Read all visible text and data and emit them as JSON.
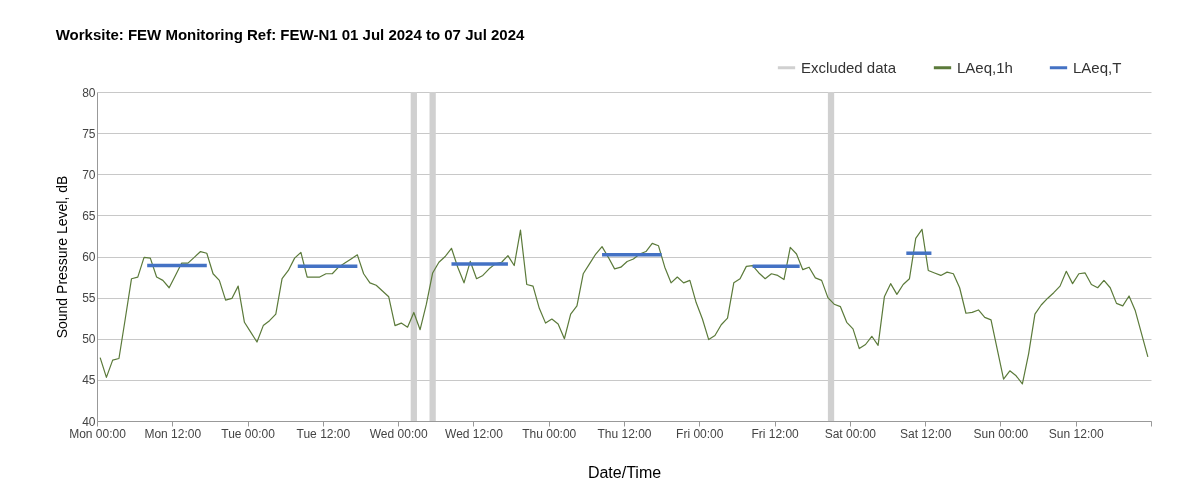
{
  "chart_data": {
    "type": "line",
    "title": "Worksite: FEW   Monitoring Ref: FEW-N1    01 Jul 2024 to 07 Jul 2024",
    "xlabel": "Date/Time",
    "ylabel": "Sound Pressure Level, dB",
    "xlim": [
      "2024-07-01T00:00",
      "2024-07-08T00:00"
    ],
    "ylim": [
      40,
      80
    ],
    "xticks": [
      {
        "value": "2024-07-01T00:00",
        "label": "Mon 00:00"
      },
      {
        "value": "2024-07-01T12:00",
        "label": "Mon 12:00"
      },
      {
        "value": "2024-07-02T00:00",
        "label": "Tue 00:00"
      },
      {
        "value": "2024-07-02T12:00",
        "label": "Tue 12:00"
      },
      {
        "value": "2024-07-03T00:00",
        "label": "Wed 00:00"
      },
      {
        "value": "2024-07-03T12:00",
        "label": "Wed 12:00"
      },
      {
        "value": "2024-07-04T00:00",
        "label": "Thu 00:00"
      },
      {
        "value": "2024-07-04T12:00",
        "label": "Thu 12:00"
      },
      {
        "value": "2024-07-05T00:00",
        "label": "Fri 00:00"
      },
      {
        "value": "2024-07-05T12:00",
        "label": "Fri 12:00"
      },
      {
        "value": "2024-07-06T00:00",
        "label": "Sat 00:00"
      },
      {
        "value": "2024-07-06T12:00",
        "label": "Sat 12:00"
      },
      {
        "value": "2024-07-07T00:00",
        "label": "Sun 00:00"
      },
      {
        "value": "2024-07-07T12:00",
        "label": "Sun 12:00"
      },
      {
        "value": "2024-07-08T00:00",
        "label": null
      }
    ],
    "yticks": [
      40,
      45,
      50,
      55,
      60,
      65,
      70,
      75,
      80
    ],
    "grid": "y",
    "legend": "top right",
    "bands": [
      {
        "axis": "x",
        "from": "2024-07-03T02:00",
        "to": "2024-07-03T03:00",
        "label": "Excluded data",
        "color": "#d0d0d0"
      },
      {
        "axis": "x",
        "from": "2024-07-03T05:00",
        "to": "2024-07-03T06:00",
        "color": "#d0d0d0"
      },
      {
        "axis": "x",
        "from": "2024-07-05T20:30",
        "to": "2024-07-05T21:30",
        "color": "#d0d0d0"
      }
    ],
    "series": [
      {
        "name": "LAeq,1h",
        "color": "#5b7a3a",
        "x": [
          "2024-07-01T00:30",
          "2024-07-01T01:30",
          "2024-07-01T02:30",
          "2024-07-01T03:30",
          "2024-07-01T04:30",
          "2024-07-01T05:30",
          "2024-07-01T06:30",
          "2024-07-01T07:30",
          "2024-07-01T08:30",
          "2024-07-01T09:30",
          "2024-07-01T10:30",
          "2024-07-01T11:30",
          "2024-07-01T12:30",
          "2024-07-01T13:30",
          "2024-07-01T14:30",
          "2024-07-01T15:30",
          "2024-07-01T16:30",
          "2024-07-01T17:30",
          "2024-07-01T18:30",
          "2024-07-01T19:30",
          "2024-07-01T20:30",
          "2024-07-01T21:30",
          "2024-07-01T22:30",
          "2024-07-01T23:30",
          "2024-07-02T00:30",
          "2024-07-02T01:30",
          "2024-07-02T02:30",
          "2024-07-02T03:30",
          "2024-07-02T04:30",
          "2024-07-02T05:30",
          "2024-07-02T06:30",
          "2024-07-02T07:30",
          "2024-07-02T08:30",
          "2024-07-02T09:30",
          "2024-07-02T10:30",
          "2024-07-02T11:30",
          "2024-07-02T12:30",
          "2024-07-02T13:30",
          "2024-07-02T14:30",
          "2024-07-02T15:30",
          "2024-07-02T16:30",
          "2024-07-02T17:30",
          "2024-07-02T18:30",
          "2024-07-02T19:30",
          "2024-07-02T20:30",
          "2024-07-02T21:30",
          "2024-07-02T22:30",
          "2024-07-02T23:30",
          "2024-07-03T00:30",
          "2024-07-03T01:30",
          "2024-07-03T02:30",
          "2024-07-03T03:30",
          "2024-07-03T04:30",
          "2024-07-03T05:30",
          "2024-07-03T06:30",
          "2024-07-03T07:30",
          "2024-07-03T08:30",
          "2024-07-03T09:30",
          "2024-07-03T10:30",
          "2024-07-03T11:30",
          "2024-07-03T12:30",
          "2024-07-03T13:30",
          "2024-07-03T14:30",
          "2024-07-03T15:30",
          "2024-07-03T16:30",
          "2024-07-03T17:30",
          "2024-07-03T18:30",
          "2024-07-03T19:30",
          "2024-07-03T20:30",
          "2024-07-03T21:30",
          "2024-07-03T22:30",
          "2024-07-03T23:30",
          "2024-07-04T00:30",
          "2024-07-04T01:30",
          "2024-07-04T02:30",
          "2024-07-04T03:30",
          "2024-07-04T04:30",
          "2024-07-04T05:30",
          "2024-07-04T06:30",
          "2024-07-04T07:30",
          "2024-07-04T08:30",
          "2024-07-04T09:30",
          "2024-07-04T10:30",
          "2024-07-04T11:30",
          "2024-07-04T12:30",
          "2024-07-04T13:30",
          "2024-07-04T14:30",
          "2024-07-04T15:30",
          "2024-07-04T16:30",
          "2024-07-04T17:30",
          "2024-07-04T18:30",
          "2024-07-04T19:30",
          "2024-07-04T20:30",
          "2024-07-04T21:30",
          "2024-07-04T22:30",
          "2024-07-04T23:30",
          "2024-07-05T00:30",
          "2024-07-05T01:30",
          "2024-07-05T02:30",
          "2024-07-05T03:30",
          "2024-07-05T04:30",
          "2024-07-05T05:30",
          "2024-07-05T06:30",
          "2024-07-05T07:30",
          "2024-07-05T08:30",
          "2024-07-05T09:30",
          "2024-07-05T10:30",
          "2024-07-05T11:30",
          "2024-07-05T12:30",
          "2024-07-05T13:30",
          "2024-07-05T14:30",
          "2024-07-05T15:30",
          "2024-07-05T16:30",
          "2024-07-05T17:30",
          "2024-07-05T18:30",
          "2024-07-05T19:30",
          "2024-07-05T20:30",
          "2024-07-05T21:30",
          "2024-07-05T22:30",
          "2024-07-05T23:30",
          "2024-07-06T00:30",
          "2024-07-06T01:30",
          "2024-07-06T02:30",
          "2024-07-06T03:30",
          "2024-07-06T04:30",
          "2024-07-06T05:30",
          "2024-07-06T06:30",
          "2024-07-06T07:30",
          "2024-07-06T08:30",
          "2024-07-06T09:30",
          "2024-07-06T10:30",
          "2024-07-06T11:30",
          "2024-07-06T12:30",
          "2024-07-06T13:30",
          "2024-07-06T14:30",
          "2024-07-06T15:30",
          "2024-07-06T16:30",
          "2024-07-06T17:30",
          "2024-07-06T18:30",
          "2024-07-06T19:30",
          "2024-07-06T20:30",
          "2024-07-06T21:30",
          "2024-07-06T22:30",
          "2024-07-07T00:30",
          "2024-07-07T01:30",
          "2024-07-07T02:30",
          "2024-07-07T03:30",
          "2024-07-07T04:30",
          "2024-07-07T05:30",
          "2024-07-07T06:30",
          "2024-07-07T07:30",
          "2024-07-07T08:30",
          "2024-07-07T09:30",
          "2024-07-07T10:30",
          "2024-07-07T11:30",
          "2024-07-07T12:30",
          "2024-07-07T13:30",
          "2024-07-07T14:30",
          "2024-07-07T15:30",
          "2024-07-07T16:30",
          "2024-07-07T17:30",
          "2024-07-07T18:30",
          "2024-07-07T19:30",
          "2024-07-07T20:30",
          "2024-07-07T21:30",
          "2024-07-07T23:30"
        ],
        "values": [
          47.7,
          45.3,
          47.4,
          47.6,
          52.4,
          57.3,
          57.5,
          59.9,
          59.8,
          57.5,
          57.1,
          56.2,
          57.7,
          59.2,
          59.2,
          59.9,
          60.6,
          60.4,
          57.9,
          57.1,
          54.7,
          54.9,
          56.4,
          52.0,
          50.8,
          49.6,
          51.6,
          52.2,
          53.0,
          57.3,
          58.3,
          59.8,
          60.5,
          57.5,
          57.5,
          57.5,
          57.9,
          57.9,
          58.7,
          59.2,
          59.7,
          60.2,
          57.9,
          56.8,
          56.5,
          55.8,
          55.1,
          51.6,
          51.9,
          51.4,
          53.2,
          51.1,
          54.2,
          58.0,
          59.3,
          60.0,
          61.0,
          58.7,
          56.8,
          59.4,
          57.3,
          57.7,
          58.5,
          59.1,
          59.3,
          60.1,
          58.9,
          63.2,
          56.6,
          56.4,
          53.7,
          51.9,
          52.4,
          51.8,
          50.0,
          53.0,
          54.0,
          57.9,
          59.1,
          60.3,
          61.2,
          59.9,
          58.5,
          58.7,
          59.4,
          59.7,
          60.3,
          60.6,
          61.6,
          61.3,
          58.7,
          56.8,
          57.5,
          56.8,
          57.1,
          54.4,
          52.4,
          49.9,
          50.4,
          51.7,
          52.5,
          56.8,
          57.3,
          58.8,
          58.9,
          58.0,
          57.3,
          57.9,
          57.7,
          57.2,
          61.1,
          60.3,
          58.4,
          58.7,
          57.4,
          57.1,
          55.0,
          54.2,
          53.9,
          52.0,
          51.2,
          48.8,
          49.3,
          50.3,
          49.2,
          55.1,
          56.7,
          55.4,
          56.6,
          57.3,
          62.2,
          63.3,
          58.3,
          58.0,
          57.7,
          58.1,
          57.9,
          56.2,
          53.1,
          53.2,
          53.5,
          52.6,
          52.3,
          45.1,
          46.1,
          45.5,
          44.5,
          48.2,
          53.0,
          54.1,
          54.9,
          55.6,
          56.4,
          58.2,
          56.7,
          57.9,
          58.0,
          56.6,
          56.2,
          57.1,
          56.2,
          54.3,
          54.0,
          55.2,
          53.4,
          47.8
        ]
      },
      {
        "name": "LAeq,T",
        "color": "#4472c4",
        "x": [
          "2024-07-01T08:00",
          "2024-07-01T17:30"
        ],
        "values": [
          58.9,
          58.9
        ]
      },
      {
        "color": "#4472c4",
        "x": [
          "2024-07-02T08:00",
          "2024-07-02T17:30"
        ],
        "values": [
          58.8,
          58.8
        ]
      },
      {
        "color": "#4472c4",
        "x": [
          "2024-07-03T08:30",
          "2024-07-03T17:30"
        ],
        "values": [
          59.1,
          59.1
        ]
      },
      {
        "color": "#4472c4",
        "x": [
          "2024-07-04T08:30",
          "2024-07-04T18:00"
        ],
        "values": [
          60.2,
          60.2
        ]
      },
      {
        "color": "#4472c4",
        "x": [
          "2024-07-05T08:30",
          "2024-07-05T16:00"
        ],
        "values": [
          58.8,
          58.8
        ]
      },
      {
        "color": "#4472c4",
        "x": [
          "2024-07-06T09:00",
          "2024-07-06T13:00"
        ],
        "values": [
          60.4,
          60.4
        ]
      }
    ]
  }
}
